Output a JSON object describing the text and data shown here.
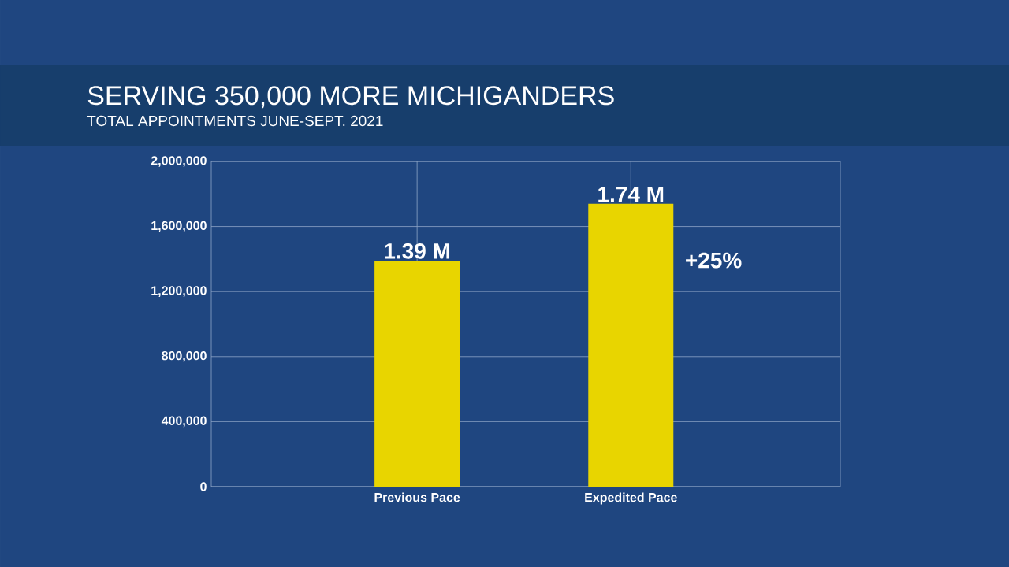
{
  "chart_data": {
    "type": "bar",
    "title": "SERVING 350,000 MORE MICHIGANDERS",
    "subtitle": "TOTAL APPOINTMENTS JUNE-SEPT. 2021",
    "categories": [
      "Previous Pace",
      "Expedited Pace"
    ],
    "values": [
      1390000,
      1740000
    ],
    "value_labels": [
      "1.39 M",
      "1.74 M"
    ],
    "color": "#e8d500",
    "ylim": [
      0,
      2000000
    ],
    "yticks": [
      {
        "value": 0,
        "label": "0"
      },
      {
        "value": 400000,
        "label": "400,000"
      },
      {
        "value": 800000,
        "label": "800,000"
      },
      {
        "value": 1200000,
        "label": "1,200,000"
      },
      {
        "value": 1600000,
        "label": "1,600,000"
      },
      {
        "value": 2000000,
        "label": "2,000,000"
      }
    ],
    "grid": true,
    "annotations": [
      "+25%"
    ]
  }
}
